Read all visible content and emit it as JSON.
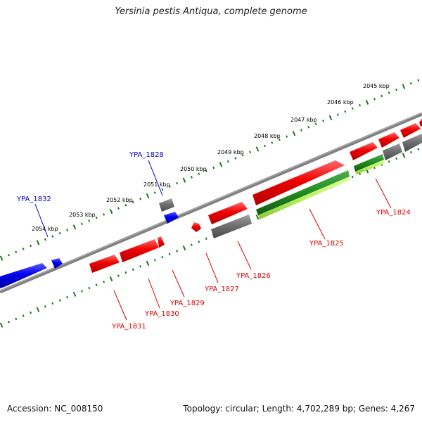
{
  "title": "Yersinia pestis Antiqua, complete genome",
  "footer": {
    "accession": "Accession: NC_008150",
    "summary": "Topology: circular; Length: 4,702,289 bp; Genes: 4,267"
  },
  "kbp_labels": [
    "2045 kbp",
    "2046 kbp",
    "2047 kbp",
    "2048 kbp",
    "2049 kbp",
    "2050 kbp",
    "2051 kbp",
    "2052 kbp",
    "2053 kbp",
    "2054 kbp"
  ],
  "genes": [
    {
      "name": "YPA_1824",
      "color": "#e00000"
    },
    {
      "name": "YPA_1825",
      "color": "#e00000"
    },
    {
      "name": "YPA_1826",
      "color": "#e00000"
    },
    {
      "name": "YPA_1827",
      "color": "#e00000"
    },
    {
      "name": "YPA_1828",
      "color": "#0000cc"
    },
    {
      "name": "YPA_1829",
      "color": "#e00000"
    },
    {
      "name": "YPA_1830",
      "color": "#e00000"
    },
    {
      "name": "YPA_1831",
      "color": "#e00000"
    },
    {
      "name": "YPA_1832",
      "color": "#0000cc"
    }
  ],
  "colors": {
    "backbone": "#808080",
    "tick": "#1a7a1a",
    "cds_forward": "#ee0000",
    "cds_reverse": "#0000ee",
    "gene_grey": "#666666",
    "rna_dark": "#1f8a1f",
    "rna_light": "#b8f060"
  }
}
